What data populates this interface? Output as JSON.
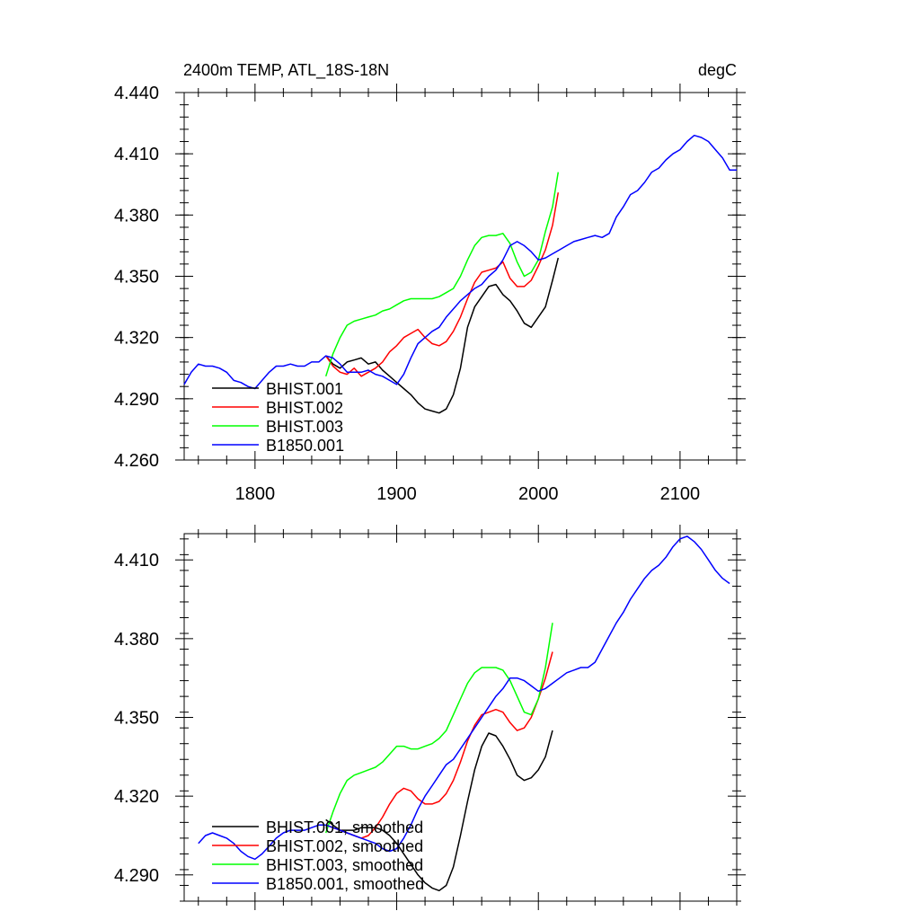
{
  "colors": {
    "black": "#000000",
    "red": "#ff0000",
    "green": "#00ff00",
    "blue": "#0000ff",
    "frame": "#000000"
  },
  "chart_data": [
    {
      "type": "line",
      "title": "2400m TEMP, ATL_18S-18N",
      "units": "degC",
      "xlabel": "",
      "ylabel": "",
      "xlim": [
        1750,
        2140
      ],
      "ylim": [
        4.26,
        4.44
      ],
      "x_ticks": [
        1800,
        1900,
        2000,
        2100
      ],
      "y_ticks": [
        "4.260",
        "4.290",
        "4.320",
        "4.350",
        "4.380",
        "4.410",
        "4.440"
      ],
      "grid": false,
      "legend_position": "bottom-left",
      "series": [
        {
          "name": "BHIST.001",
          "color": "#000000",
          "x": [
            1850,
            1855,
            1860,
            1865,
            1870,
            1875,
            1880,
            1885,
            1890,
            1895,
            1900,
            1905,
            1910,
            1915,
            1920,
            1925,
            1930,
            1935,
            1940,
            1945,
            1950,
            1955,
            1960,
            1965,
            1970,
            1975,
            1980,
            1985,
            1990,
            1995,
            2000,
            2005,
            2010,
            2014
          ],
          "y": [
            4.311,
            4.307,
            4.305,
            4.308,
            4.309,
            4.31,
            4.307,
            4.308,
            4.304,
            4.301,
            4.298,
            4.295,
            4.292,
            4.288,
            4.285,
            4.284,
            4.283,
            4.285,
            4.292,
            4.305,
            4.325,
            4.335,
            4.34,
            4.345,
            4.346,
            4.341,
            4.338,
            4.333,
            4.327,
            4.325,
            4.33,
            4.335,
            4.348,
            4.359
          ]
        },
        {
          "name": "BHIST.002",
          "color": "#ff0000",
          "x": [
            1850,
            1855,
            1860,
            1865,
            1870,
            1875,
            1880,
            1885,
            1890,
            1895,
            1900,
            1905,
            1910,
            1915,
            1920,
            1925,
            1930,
            1935,
            1940,
            1945,
            1950,
            1955,
            1960,
            1965,
            1970,
            1975,
            1980,
            1985,
            1990,
            1995,
            2000,
            2005,
            2010,
            2014
          ],
          "y": [
            4.311,
            4.306,
            4.303,
            4.302,
            4.305,
            4.301,
            4.303,
            4.305,
            4.308,
            4.313,
            4.316,
            4.32,
            4.322,
            4.324,
            4.32,
            4.317,
            4.316,
            4.318,
            4.323,
            4.33,
            4.339,
            4.347,
            4.352,
            4.353,
            4.354,
            4.357,
            4.349,
            4.345,
            4.345,
            4.348,
            4.355,
            4.363,
            4.375,
            4.391
          ]
        },
        {
          "name": "BHIST.003",
          "color": "#00ff00",
          "x": [
            1850,
            1855,
            1860,
            1865,
            1870,
            1875,
            1880,
            1885,
            1890,
            1895,
            1900,
            1905,
            1910,
            1915,
            1920,
            1925,
            1930,
            1935,
            1940,
            1945,
            1950,
            1955,
            1960,
            1965,
            1970,
            1975,
            1980,
            1985,
            1990,
            1995,
            2000,
            2005,
            2010,
            2014
          ],
          "y": [
            4.301,
            4.312,
            4.32,
            4.326,
            4.328,
            4.329,
            4.33,
            4.331,
            4.333,
            4.334,
            4.336,
            4.338,
            4.339,
            4.339,
            4.339,
            4.339,
            4.34,
            4.342,
            4.344,
            4.35,
            4.358,
            4.365,
            4.369,
            4.37,
            4.37,
            4.371,
            4.366,
            4.357,
            4.35,
            4.352,
            4.358,
            4.372,
            4.384,
            4.401
          ]
        },
        {
          "name": "B1850.001",
          "color": "#0000ff",
          "x": [
            1750,
            1755,
            1760,
            1765,
            1770,
            1775,
            1780,
            1785,
            1790,
            1795,
            1800,
            1805,
            1810,
            1815,
            1820,
            1825,
            1830,
            1835,
            1840,
            1845,
            1850,
            1855,
            1860,
            1865,
            1870,
            1875,
            1880,
            1885,
            1890,
            1895,
            1900,
            1905,
            1910,
            1915,
            1920,
            1925,
            1930,
            1935,
            1940,
            1945,
            1950,
            1955,
            1960,
            1965,
            1970,
            1975,
            1980,
            1985,
            1990,
            1995,
            2000,
            2005,
            2010,
            2015,
            2020,
            2025,
            2030,
            2035,
            2040,
            2045,
            2050,
            2055,
            2060,
            2065,
            2070,
            2075,
            2080,
            2085,
            2090,
            2095,
            2100,
            2105,
            2110,
            2115,
            2120,
            2125,
            2130,
            2135,
            2140
          ],
          "y": [
            4.297,
            4.303,
            4.307,
            4.306,
            4.306,
            4.305,
            4.303,
            4.299,
            4.298,
            4.296,
            4.295,
            4.299,
            4.303,
            4.306,
            4.306,
            4.307,
            4.306,
            4.306,
            4.308,
            4.308,
            4.311,
            4.31,
            4.307,
            4.303,
            4.303,
            4.303,
            4.304,
            4.302,
            4.301,
            4.299,
            4.297,
            4.302,
            4.31,
            4.317,
            4.32,
            4.323,
            4.325,
            4.33,
            4.334,
            4.338,
            4.341,
            4.344,
            4.346,
            4.35,
            4.353,
            4.358,
            4.365,
            4.367,
            4.365,
            4.362,
            4.358,
            4.359,
            4.361,
            4.363,
            4.365,
            4.367,
            4.368,
            4.369,
            4.37,
            4.369,
            4.371,
            4.379,
            4.384,
            4.39,
            4.392,
            4.396,
            4.401,
            4.403,
            4.407,
            4.41,
            4.412,
            4.416,
            4.419,
            4.418,
            4.416,
            4.412,
            4.408,
            4.402,
            4.402
          ]
        }
      ]
    },
    {
      "type": "line",
      "title": "",
      "xlabel": "",
      "ylabel": "",
      "xlim": [
        1750,
        2140
      ],
      "ylim": [
        4.28,
        4.42
      ],
      "x_ticks": [
        1800,
        1900,
        2000,
        2100
      ],
      "y_ticks": [
        "4.290",
        "4.320",
        "4.350",
        "4.380",
        "4.410"
      ],
      "grid": false,
      "legend_position": "bottom-left",
      "series": [
        {
          "name": "BHIST.001, smoothed",
          "color": "#000000",
          "x": [
            1850,
            1855,
            1860,
            1865,
            1870,
            1875,
            1880,
            1885,
            1890,
            1895,
            1900,
            1905,
            1910,
            1915,
            1920,
            1925,
            1930,
            1935,
            1940,
            1945,
            1950,
            1955,
            1960,
            1965,
            1970,
            1975,
            1980,
            1985,
            1990,
            1995,
            2000,
            2005,
            2010
          ],
          "y": [
            4.311,
            4.309,
            4.307,
            4.307,
            4.307,
            4.308,
            4.308,
            4.308,
            4.307,
            4.305,
            4.302,
            4.298,
            4.294,
            4.29,
            4.287,
            4.285,
            4.284,
            4.286,
            4.293,
            4.305,
            4.318,
            4.33,
            4.339,
            4.344,
            4.343,
            4.339,
            4.334,
            4.328,
            4.326,
            4.327,
            4.33,
            4.335,
            4.345
          ]
        },
        {
          "name": "BHIST.002, smoothed",
          "color": "#ff0000",
          "x": [
            1850,
            1855,
            1860,
            1865,
            1870,
            1875,
            1880,
            1885,
            1890,
            1895,
            1900,
            1905,
            1910,
            1915,
            1920,
            1925,
            1930,
            1935,
            1940,
            1945,
            1950,
            1955,
            1960,
            1965,
            1970,
            1975,
            1980,
            1985,
            1990,
            1995,
            2000,
            2005,
            2010
          ],
          "y": [
            4.309,
            4.308,
            4.307,
            4.306,
            4.305,
            4.304,
            4.305,
            4.308,
            4.312,
            4.317,
            4.321,
            4.323,
            4.322,
            4.319,
            4.317,
            4.317,
            4.318,
            4.321,
            4.326,
            4.333,
            4.341,
            4.347,
            4.351,
            4.352,
            4.353,
            4.352,
            4.348,
            4.345,
            4.346,
            4.35,
            4.357,
            4.365,
            4.375
          ]
        },
        {
          "name": "BHIST.003, smoothed",
          "color": "#00ff00",
          "x": [
            1850,
            1855,
            1860,
            1865,
            1870,
            1875,
            1880,
            1885,
            1890,
            1895,
            1900,
            1905,
            1910,
            1915,
            1920,
            1925,
            1930,
            1935,
            1940,
            1945,
            1950,
            1955,
            1960,
            1965,
            1970,
            1975,
            1980,
            1985,
            1990,
            1995,
            2000,
            2005,
            2010
          ],
          "y": [
            4.306,
            4.314,
            4.321,
            4.326,
            4.328,
            4.329,
            4.33,
            4.331,
            4.333,
            4.336,
            4.339,
            4.339,
            4.338,
            4.338,
            4.339,
            4.34,
            4.342,
            4.345,
            4.351,
            4.357,
            4.363,
            4.367,
            4.369,
            4.369,
            4.369,
            4.368,
            4.364,
            4.358,
            4.352,
            4.351,
            4.357,
            4.369,
            4.386
          ]
        },
        {
          "name": "B1850.001, smoothed",
          "color": "#0000ff",
          "x": [
            1760,
            1765,
            1770,
            1775,
            1780,
            1785,
            1790,
            1795,
            1800,
            1805,
            1810,
            1815,
            1820,
            1825,
            1830,
            1835,
            1840,
            1845,
            1850,
            1855,
            1860,
            1865,
            1870,
            1875,
            1880,
            1885,
            1890,
            1895,
            1900,
            1905,
            1910,
            1915,
            1920,
            1925,
            1930,
            1935,
            1940,
            1945,
            1950,
            1955,
            1960,
            1965,
            1970,
            1975,
            1980,
            1985,
            1990,
            1995,
            2000,
            2005,
            2010,
            2015,
            2020,
            2025,
            2030,
            2035,
            2040,
            2045,
            2050,
            2055,
            2060,
            2065,
            2070,
            2075,
            2080,
            2085,
            2090,
            2095,
            2100,
            2105,
            2110,
            2115,
            2120,
            2125,
            2130,
            2135
          ],
          "y": [
            4.302,
            4.305,
            4.306,
            4.305,
            4.304,
            4.302,
            4.299,
            4.297,
            4.296,
            4.298,
            4.301,
            4.304,
            4.306,
            4.307,
            4.307,
            4.307,
            4.308,
            4.309,
            4.309,
            4.308,
            4.307,
            4.306,
            4.305,
            4.304,
            4.303,
            4.302,
            4.3,
            4.299,
            4.3,
            4.304,
            4.309,
            4.315,
            4.32,
            4.324,
            4.328,
            4.332,
            4.334,
            4.338,
            4.342,
            4.346,
            4.35,
            4.354,
            4.358,
            4.361,
            4.365,
            4.365,
            4.364,
            4.362,
            4.36,
            4.361,
            4.363,
            4.365,
            4.367,
            4.368,
            4.369,
            4.369,
            4.371,
            4.376,
            4.381,
            4.386,
            4.39,
            4.395,
            4.399,
            4.403,
            4.406,
            4.408,
            4.411,
            4.415,
            4.418,
            4.419,
            4.417,
            4.414,
            4.41,
            4.406,
            4.403,
            4.401
          ]
        }
      ]
    }
  ]
}
